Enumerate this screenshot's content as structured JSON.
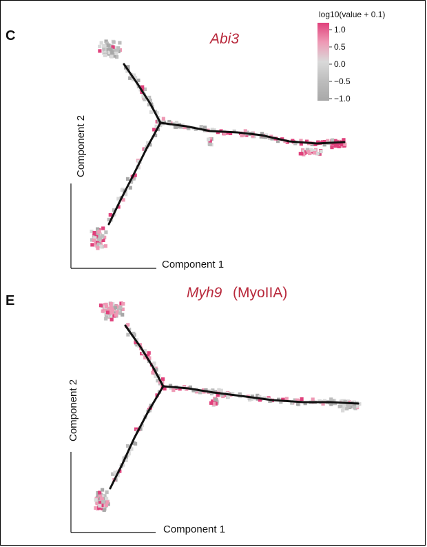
{
  "chart_data": [
    {
      "type": "scatter",
      "panel": "C",
      "title": "Abi3",
      "title_suffix": "",
      "xlabel": "Component 1",
      "ylabel": "Component 2",
      "tree_color": "#111111",
      "point_expression_summary": {
        "trunk": "mostly grey, scattered light pink",
        "left_upper_branch": "grey",
        "left_lower_branch": "grey with pink-rich terminal cluster",
        "right_branch": "grey near junction, strong pink toward terminal"
      }
    },
    {
      "type": "scatter",
      "panel": "E",
      "title": "Myh9",
      "title_suffix": "(MyoIIA)",
      "xlabel": "Component 1",
      "ylabel": "Component 2",
      "tree_color": "#111111",
      "point_expression_summary": {
        "trunk": "mixed grey and pink",
        "left_upper_branch": "mixed grey/pink",
        "left_lower_branch": "mixed grey/pink",
        "right_branch": "mostly grey with pink patches"
      }
    }
  ],
  "legend": {
    "title": "log10(value + 0.1)",
    "ticks": [
      "1.0",
      "0.5",
      "0.0",
      "−0.5",
      "−1.0"
    ],
    "colors": [
      "#e0417c",
      "#ee9ab5",
      "#d9d9d9",
      "#bdbdbd",
      "#a8a8a8"
    ]
  }
}
